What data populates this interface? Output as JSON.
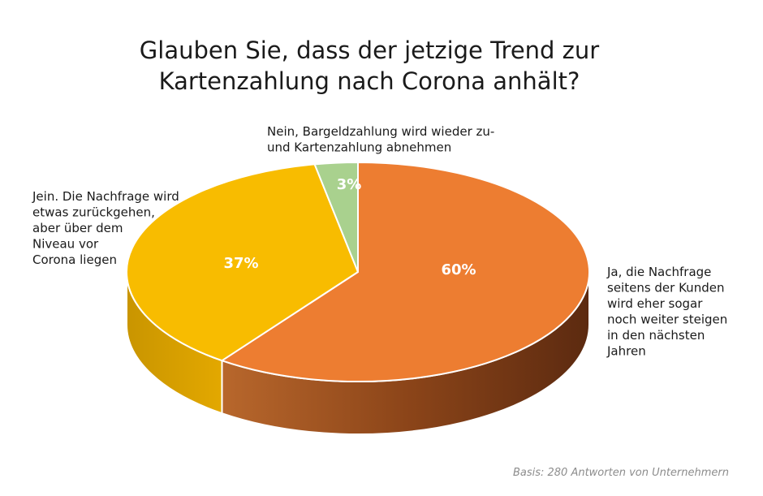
{
  "chart_data": {
    "type": "pie",
    "title_lines": [
      "Glauben Sie, dass der jetzige Trend zur",
      "Kartenzahlung nach Corona anhält?"
    ],
    "slices": [
      {
        "label_lines": [
          "Ja, die Nachfrage",
          "seitens der Kunden",
          "wird eher sogar",
          "noch weiter steigen",
          "in den nächsten",
          "Jahren"
        ],
        "value": 60,
        "value_label": "60%",
        "color": "#ED7D31",
        "side_color": "#8B4513"
      },
      {
        "label_lines": [
          "Jein. Die Nachfrage wird",
          "etwas zurückgehen,",
          "aber über dem",
          "Niveau vor",
          "Corona liegen"
        ],
        "value": 37,
        "value_label": "37%",
        "color": "#F8BC00",
        "side_color": "#B38600"
      },
      {
        "label_lines": [
          "Nein, Bargeldzahlung wird wieder zu-",
          "und Kartenzahlung abnehmen"
        ],
        "value": 3,
        "value_label": "3%",
        "color": "#A9D18E",
        "side_color": "#6E9A55"
      }
    ],
    "legend": "none"
  },
  "source_note": "Basis: 280 Antworten von Unternehmern"
}
